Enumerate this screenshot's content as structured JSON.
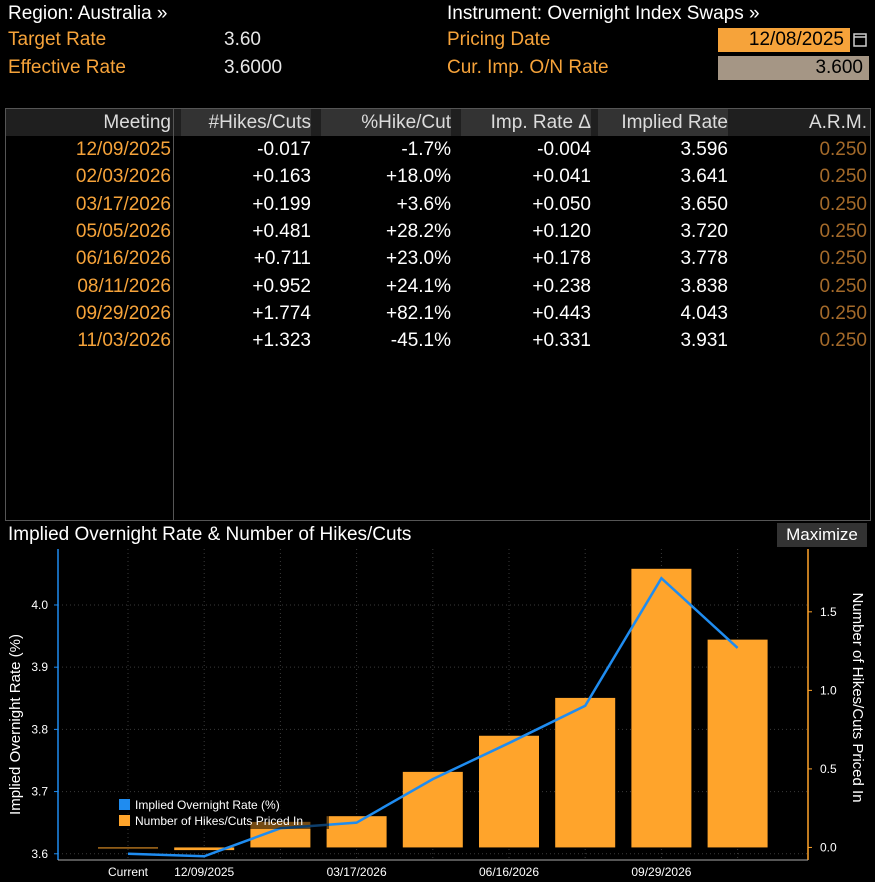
{
  "header": {
    "region_label": "Region: Australia »",
    "instrument_label": "Instrument: Overnight Index Swaps »",
    "target_rate_label": "Target Rate",
    "target_rate_value": "3.60",
    "effective_rate_label": "Effective Rate",
    "effective_rate_value": "3.6000",
    "pricing_date_label": "Pricing Date",
    "pricing_date_value": "12/08/2025",
    "cur_imp_label": "Cur. Imp. O/N Rate",
    "cur_imp_value": "3.600"
  },
  "table": {
    "columns": [
      "Meeting",
      "#Hikes/Cuts",
      "%Hike/Cut",
      "Imp. Rate Δ",
      "Implied Rate",
      "A.R.M."
    ],
    "rows": [
      [
        "12/09/2025",
        "-0.017",
        "-1.7%",
        "-0.004",
        "3.596",
        "0.250"
      ],
      [
        "02/03/2026",
        "+0.163",
        "+18.0%",
        "+0.041",
        "3.641",
        "0.250"
      ],
      [
        "03/17/2026",
        "+0.199",
        "+3.6%",
        "+0.050",
        "3.650",
        "0.250"
      ],
      [
        "05/05/2026",
        "+0.481",
        "+28.2%",
        "+0.120",
        "3.720",
        "0.250"
      ],
      [
        "06/16/2026",
        "+0.711",
        "+23.0%",
        "+0.178",
        "3.778",
        "0.250"
      ],
      [
        "08/11/2026",
        "+0.952",
        "+24.1%",
        "+0.238",
        "3.838",
        "0.250"
      ],
      [
        "09/29/2026",
        "+1.774",
        "+82.1%",
        "+0.443",
        "4.043",
        "0.250"
      ],
      [
        "11/03/2026",
        "+1.323",
        "-45.1%",
        "+0.331",
        "3.931",
        "0.250"
      ]
    ]
  },
  "chart": {
    "title": "Implied Overnight Rate & Number of Hikes/Cuts",
    "maximize_label": "Maximize"
  },
  "chart_data": {
    "type": "bar",
    "title": "Implied Overnight Rate & Number of Hikes/Cuts",
    "categories": [
      "Current",
      "12/09/2025",
      "02/03/2026",
      "03/17/2026",
      "05/05/2026",
      "06/16/2026",
      "08/11/2026",
      "09/29/2026",
      "11/03/2026"
    ],
    "x_tick_labels": [
      "Current",
      "12/09/2025",
      "03/17/2026",
      "06/16/2026",
      "09/29/2026"
    ],
    "ylabel": "Implied Overnight Rate (%)",
    "y2label": "Number of Hikes/Cuts Priced In",
    "ylim": [
      3.59,
      4.09
    ],
    "y_ticks": [
      3.6,
      3.7,
      3.8,
      3.9,
      4.0
    ],
    "y2lim": [
      -0.08,
      1.9
    ],
    "y2_ticks": [
      0.0,
      0.5,
      1.0,
      1.5
    ],
    "series": [
      {
        "name": "Implied Overnight Rate (%)",
        "axis": "left",
        "type": "line",
        "color": "#1f8cf0",
        "values": [
          3.6,
          3.596,
          3.641,
          3.65,
          3.72,
          3.778,
          3.838,
          4.043,
          3.931
        ]
      },
      {
        "name": "Number of Hikes/Cuts Priced In",
        "axis": "right",
        "type": "bar",
        "color": "#ffa42b",
        "values": [
          0.0,
          -0.017,
          0.163,
          0.199,
          0.481,
          0.711,
          0.952,
          1.774,
          1.323
        ]
      }
    ],
    "legend_position": "bottom-left"
  }
}
